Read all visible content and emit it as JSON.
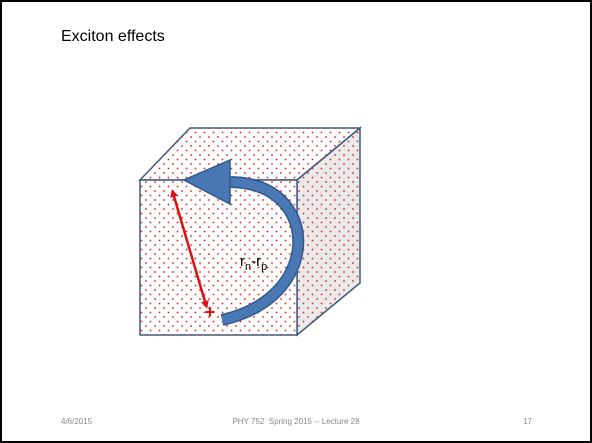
{
  "slide": {
    "title": "Exciton effects",
    "diagram": {
      "label": {
        "r1": "r",
        "sub1": "n",
        "r2": "-r",
        "sub2": "p"
      },
      "charge": "+"
    },
    "footer": {
      "date": "4/6/2015",
      "course": "PHY 752  Spring 2015 -- Lecture 28",
      "page": "17"
    }
  }
}
